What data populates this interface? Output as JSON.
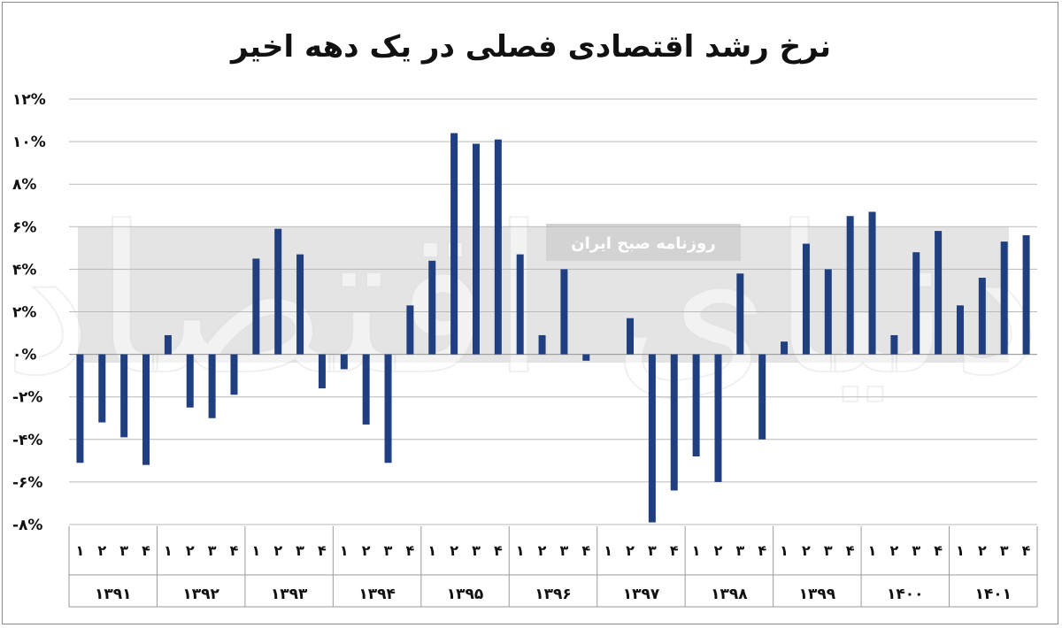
{
  "chart_data": {
    "type": "bar",
    "title": "نرخ رشد اقتصادی فصلی در یک دهه اخیر",
    "ylim": [
      -8,
      12
    ],
    "yticks": [
      "۱۲%",
      "۱۰%",
      "۸%",
      "۶%",
      "۴%",
      "۲%",
      "۰%",
      "-۲%",
      "-۴%",
      "-۶%",
      "-۸%"
    ],
    "ytick_values": [
      12,
      10,
      8,
      6,
      4,
      2,
      0,
      -2,
      -4,
      -6,
      -8
    ],
    "grid": true,
    "legend": "none",
    "bar_color": "#1f3f80",
    "years": [
      "۱۳۹۱",
      "۱۳۹۲",
      "۱۳۹۳",
      "۱۳۹۴",
      "۱۳۹۵",
      "۱۳۹۶",
      "۱۳۹۷",
      "۱۳۹۸",
      "۱۳۹۹",
      "۱۴۰۰",
      "۱۴۰۱"
    ],
    "quarters": [
      "۱",
      "۲",
      "۳",
      "۴"
    ],
    "values": [
      -5.1,
      -3.2,
      -3.9,
      -5.2,
      0.9,
      -2.5,
      -3.0,
      -1.9,
      4.5,
      5.9,
      4.7,
      -1.6,
      -0.7,
      -3.3,
      -5.1,
      2.3,
      4.4,
      10.4,
      9.9,
      10.1,
      4.7,
      0.9,
      4.0,
      -0.3,
      0.0,
      1.7,
      -7.9,
      -6.4,
      -4.8,
      -6.0,
      3.8,
      -4.0,
      0.6,
      5.2,
      4.0,
      6.5,
      6.7,
      0.9,
      4.8,
      5.8,
      2.3,
      3.6,
      5.3,
      5.6
    ]
  },
  "watermark": {
    "logo_text": "دنیای اقتصاد",
    "tagline": "روزنامه صبح ایران"
  }
}
